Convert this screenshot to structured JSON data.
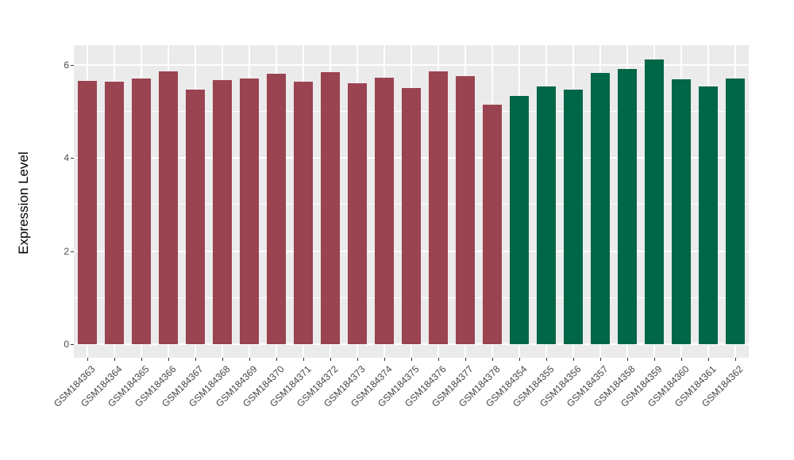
{
  "figure": {
    "background_color": "#FFFFFF",
    "panel_background_color": "#EBEBEB",
    "gridline_color": "#FFFFFF",
    "axis_text_color": "#4D4D4D",
    "axis_title_color": "#000000",
    "tick_mark_color": "#333333"
  },
  "chart_data": {
    "type": "bar",
    "title": "",
    "xlabel": "",
    "ylabel": "Expression Level",
    "ylim": [
      -0.32,
      6.42
    ],
    "y_ticks": [
      0,
      2,
      4,
      6
    ],
    "y_minor_gridlines": [
      1,
      3,
      5
    ],
    "grid": "on",
    "legend_position": "none",
    "x_tick_label_angle": 45,
    "categories": [
      "GSM184363",
      "GSM184364",
      "GSM184365",
      "GSM184366",
      "GSM184367",
      "GSM184368",
      "GSM184369",
      "GSM184370",
      "GSM184371",
      "GSM184372",
      "GSM184373",
      "GSM184374",
      "GSM184375",
      "GSM184376",
      "GSM184377",
      "GSM184378",
      "GSM184354",
      "GSM184355",
      "GSM184356",
      "GSM184357",
      "GSM184358",
      "GSM184359",
      "GSM184360",
      "GSM184361",
      "GSM184362"
    ],
    "values": [
      5.65,
      5.63,
      5.7,
      5.85,
      5.47,
      5.66,
      5.7,
      5.81,
      5.63,
      5.84,
      5.6,
      5.72,
      5.5,
      5.86,
      5.76,
      5.14,
      5.32,
      5.53,
      5.46,
      5.82,
      5.91,
      6.11,
      5.68,
      5.53,
      5.7
    ],
    "color_groups": [
      {
        "color": "#9A4351",
        "count": 16
      },
      {
        "color": "#006648",
        "count": 9
      }
    ]
  }
}
